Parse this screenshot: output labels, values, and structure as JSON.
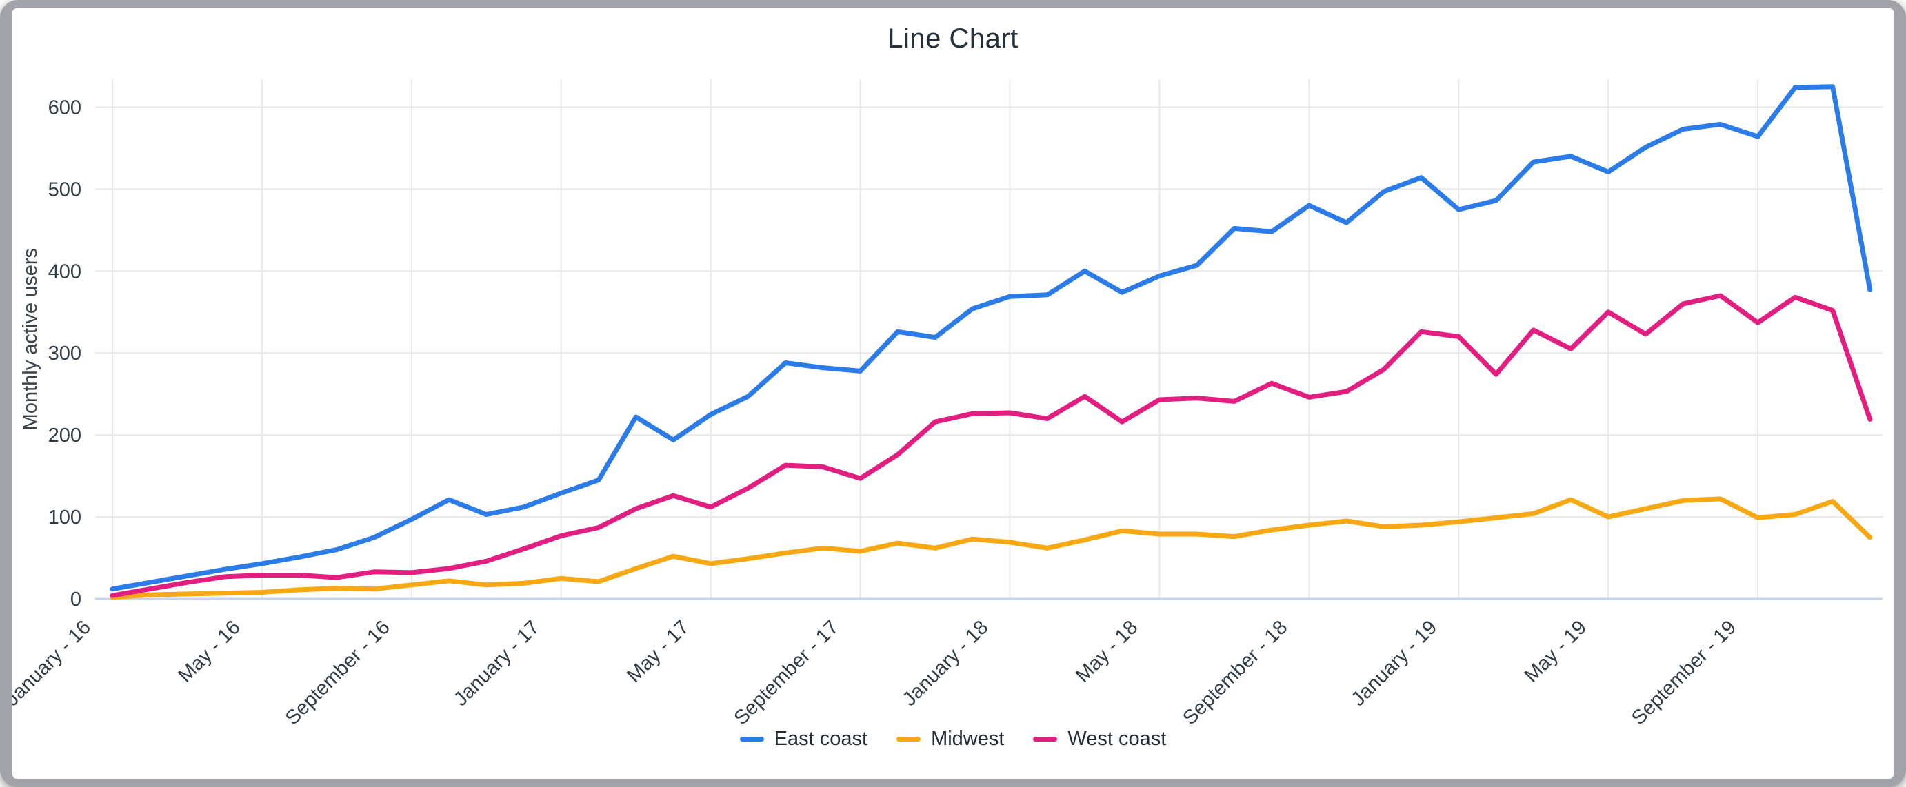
{
  "window": {
    "frame_color": "#a2a3a8",
    "card_color": "#ffffff"
  },
  "chart": {
    "title_color": "#24303b",
    "axis_text_color": "#303c46",
    "grid_color": "#e9e9e9",
    "baseline_color": "#c9d3ef"
  },
  "chart_data": {
    "type": "line",
    "title": "Line Chart",
    "xlabel": "",
    "ylabel": "Monthly active users",
    "ylim": [
      0,
      634
    ],
    "y_ticks": [
      0,
      100,
      200,
      300,
      400,
      500,
      600
    ],
    "x_tick_every": 4,
    "grid": true,
    "legend_position": "bottom",
    "categories": [
      "January - 16",
      "February - 16",
      "March - 16",
      "April - 16",
      "May - 16",
      "June - 16",
      "July - 16",
      "August - 16",
      "September - 16",
      "October - 16",
      "November - 16",
      "December - 16",
      "January - 17",
      "February - 17",
      "March - 17",
      "April - 17",
      "May - 17",
      "June - 17",
      "July - 17",
      "August - 17",
      "September - 17",
      "October - 17",
      "November - 17",
      "December - 17",
      "January - 18",
      "February - 18",
      "March - 18",
      "April - 18",
      "May - 18",
      "June - 18",
      "July - 18",
      "August - 18",
      "September - 18",
      "October - 18",
      "November - 18",
      "December - 18",
      "January - 19",
      "February - 19",
      "March - 19",
      "April - 19",
      "May - 19",
      "June - 19",
      "July - 19",
      "August - 19",
      "September - 19",
      "October - 19",
      "November - 19",
      "December - 19"
    ],
    "x_tick_labels": [
      "January - 16",
      "May - 16",
      "September - 16",
      "January - 17",
      "May - 17",
      "September - 17",
      "January - 18",
      "May - 18",
      "September - 18",
      "January - 19",
      "May - 19",
      "September - 19"
    ],
    "series": [
      {
        "name": "East coast",
        "color": "#2b7ce8",
        "values": [
          12,
          20,
          28,
          36,
          43,
          51,
          60,
          75,
          97,
          121,
          103,
          112,
          129,
          145,
          222,
          194,
          225,
          247,
          288,
          282,
          278,
          326,
          319,
          354,
          369,
          371,
          400,
          374,
          394,
          407,
          452,
          448,
          480,
          459,
          497,
          514,
          475,
          486,
          533,
          540,
          521,
          551,
          573,
          579,
          564,
          624,
          625,
          377
        ]
      },
      {
        "name": "Midwest",
        "color": "#f7a813",
        "values": [
          2,
          5,
          6,
          7,
          8,
          11,
          13,
          12,
          17,
          22,
          17,
          19,
          25,
          21,
          37,
          52,
          43,
          49,
          56,
          62,
          58,
          68,
          62,
          73,
          69,
          62,
          72,
          83,
          79,
          79,
          76,
          84,
          90,
          95,
          88,
          90,
          94,
          99,
          104,
          121,
          100,
          110,
          120,
          122,
          99,
          103,
          119,
          75
        ]
      },
      {
        "name": "West coast",
        "color": "#e21e81",
        "values": [
          4,
          12,
          20,
          27,
          29,
          29,
          26,
          33,
          32,
          37,
          46,
          61,
          77,
          87,
          110,
          126,
          112,
          135,
          163,
          161,
          147,
          176,
          216,
          226,
          227,
          220,
          247,
          216,
          243,
          245,
          241,
          263,
          246,
          253,
          280,
          326,
          320,
          274,
          328,
          305,
          350,
          323,
          360,
          370,
          337,
          368,
          352,
          219
        ]
      }
    ]
  },
  "legend": {
    "items": [
      {
        "label": "East coast",
        "color": "#2b7ce8"
      },
      {
        "label": "Midwest",
        "color": "#f7a813"
      },
      {
        "label": "West coast",
        "color": "#e21e81"
      }
    ]
  }
}
